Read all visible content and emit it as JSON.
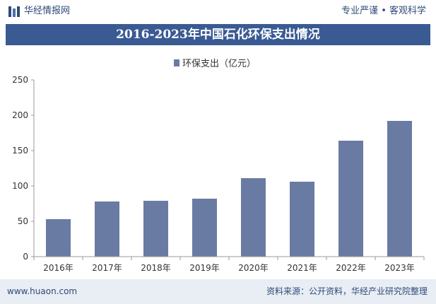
{
  "header": {
    "brand": "华经情报网",
    "tagline": "专业严谨 • 客观科学"
  },
  "footer": {
    "site": "www.huaon.com",
    "source": "资料来源：公开资料，华经产业研究院整理"
  },
  "colors": {
    "title_bg": "#3a5a93",
    "bar": "#6a7ba3",
    "text_dark": "#2e4a78",
    "footer_bg": "#e9edf4"
  },
  "chart_data": {
    "type": "bar",
    "title": "2016-2023年中国石化环保支出情况",
    "categories": [
      "2016年",
      "2017年",
      "2018年",
      "2019年",
      "2020年",
      "2021年",
      "2022年",
      "2023年"
    ],
    "series": [
      {
        "name": "环保支出（亿元）",
        "values": [
          53,
          78,
          79,
          82,
          111,
          106,
          164,
          192
        ]
      }
    ],
    "ylim": [
      0,
      250
    ],
    "yticks": [
      0,
      50,
      100,
      150,
      200,
      250
    ],
    "grid": false,
    "legend": "top-center"
  }
}
